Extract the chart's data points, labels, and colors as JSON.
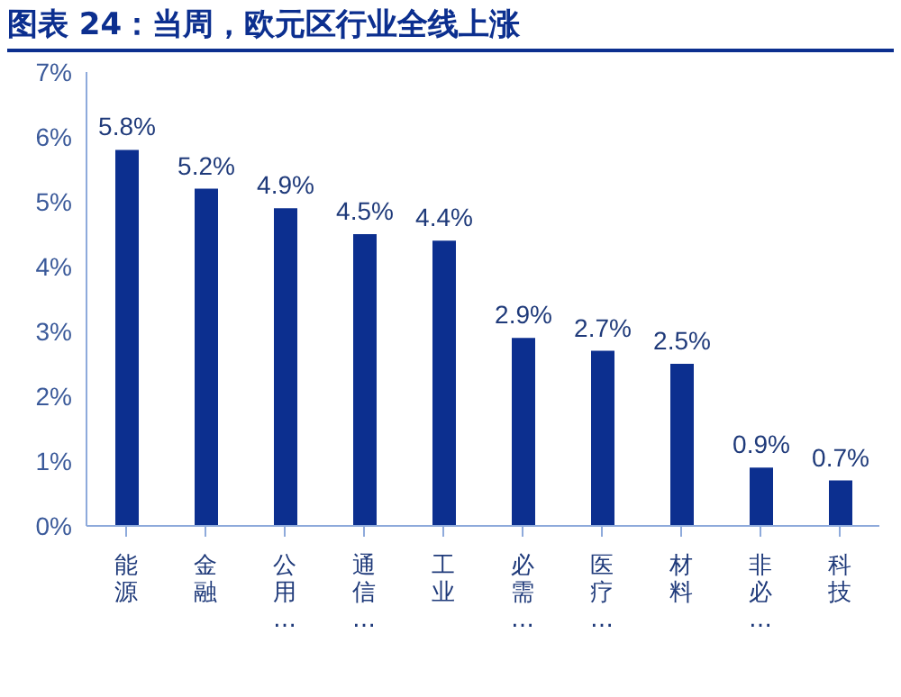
{
  "chart_data": {
    "type": "bar",
    "title": "图表 24：当周，欧元区行业全线上涨",
    "categories": [
      "能源",
      "金融",
      "公用…",
      "通信…",
      "工业",
      "必需…",
      "医疗…",
      "材料",
      "非必…",
      "科技"
    ],
    "values": [
      5.8,
      5.2,
      4.9,
      4.5,
      4.4,
      2.9,
      2.7,
      2.5,
      0.9,
      0.7
    ],
    "color": "#0c2f8f",
    "ylim": [
      0,
      7
    ],
    "yticks": [
      {
        "value": 0,
        "label": "0%"
      },
      {
        "value": 1,
        "label": "1%"
      },
      {
        "value": 2,
        "label": "2%"
      },
      {
        "value": 3,
        "label": "3%"
      },
      {
        "value": 4,
        "label": "4%"
      },
      {
        "value": 5,
        "label": "5%"
      },
      {
        "value": 6,
        "label": "6%"
      },
      {
        "value": 7,
        "label": "7%"
      }
    ],
    "value_labels": [
      "5.8%",
      "5.2%",
      "4.9%",
      "4.5%",
      "4.4%",
      "2.9%",
      "2.7%",
      "2.5%",
      "0.9%",
      "0.7%"
    ],
    "grid": false
  }
}
